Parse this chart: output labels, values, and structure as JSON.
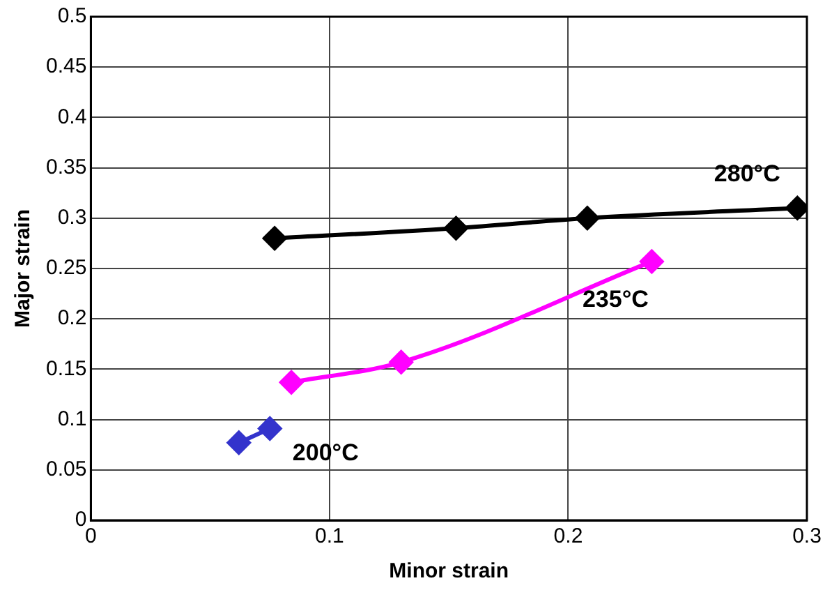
{
  "chart_data": {
    "type": "line",
    "xlabel": "Minor strain",
    "ylabel": "Major strain",
    "xlim": [
      0,
      0.3
    ],
    "xticks": [
      0,
      0.1,
      0.2,
      0.3
    ],
    "ylim": [
      0,
      0.5
    ],
    "yticks": [
      0,
      0.05,
      0.1,
      0.15,
      0.2,
      0.25,
      0.3,
      0.35,
      0.4,
      0.45,
      0.5
    ],
    "grid": true,
    "legend": false,
    "marker": "diamond",
    "series": [
      {
        "name": "280°C",
        "color": "#000000",
        "x": [
          0.077,
          0.153,
          0.208,
          0.296
        ],
        "values": [
          0.28,
          0.29,
          0.3,
          0.31
        ]
      },
      {
        "name": "235°C",
        "color": "#ff00ff",
        "x": [
          0.084,
          0.13,
          0.235
        ],
        "values": [
          0.137,
          0.157,
          0.257
        ]
      },
      {
        "name": "200°C",
        "color": "#3333cc",
        "x": [
          0.062,
          0.075
        ],
        "values": [
          0.077,
          0.091
        ]
      }
    ]
  }
}
